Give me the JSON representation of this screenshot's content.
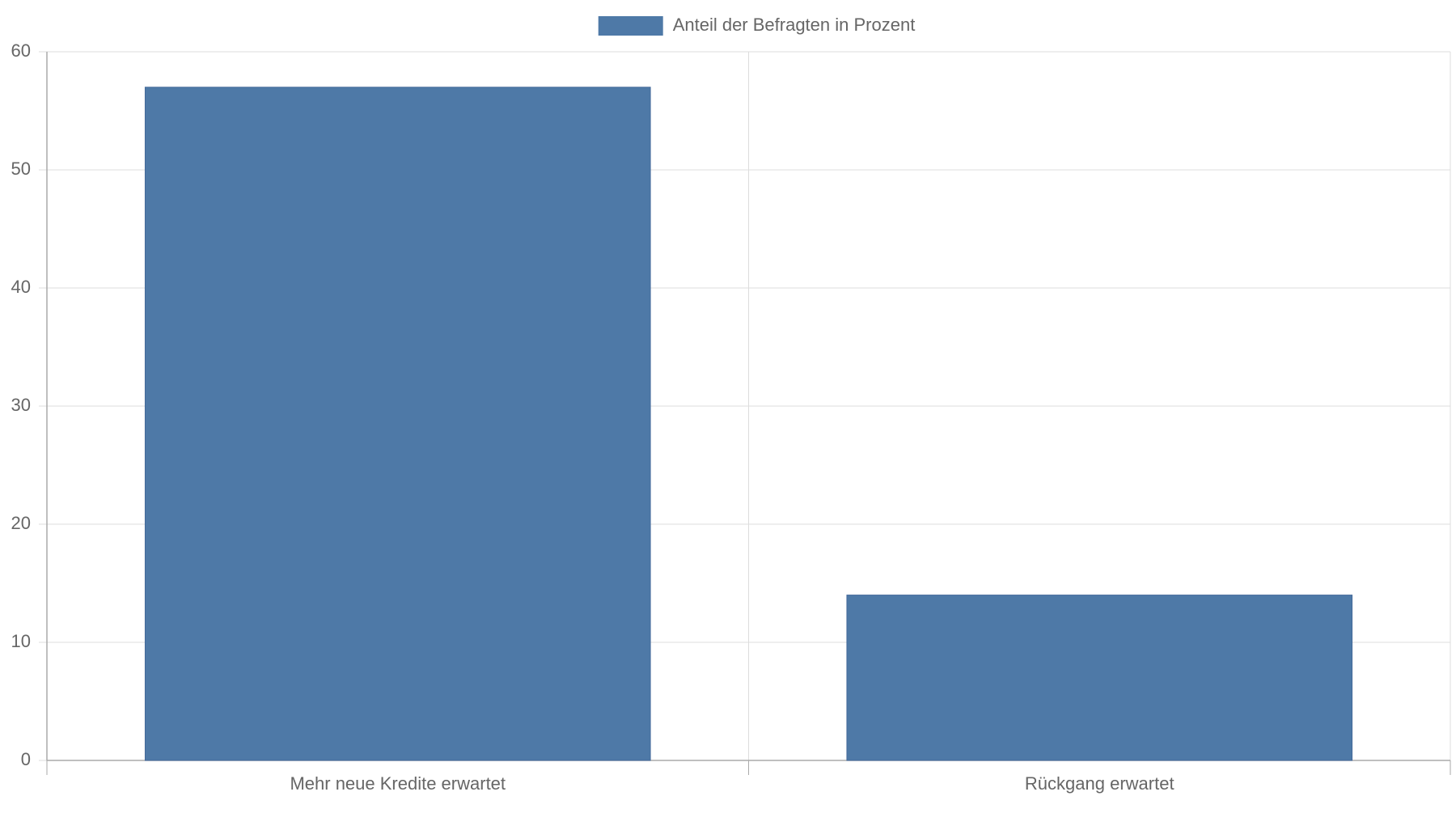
{
  "chart_data": {
    "type": "bar",
    "categories": [
      "Mehr neue Kredite erwartet",
      "Rückgang erwartet"
    ],
    "series": [
      {
        "name": "Anteil der Befragten in Prozent",
        "values": [
          57,
          14
        ],
        "color": "#4e79a7"
      }
    ],
    "ylim": [
      0,
      60
    ],
    "yticks": [
      0,
      10,
      20,
      30,
      40,
      50,
      60
    ],
    "grid": true,
    "legend_position": "top-center"
  }
}
